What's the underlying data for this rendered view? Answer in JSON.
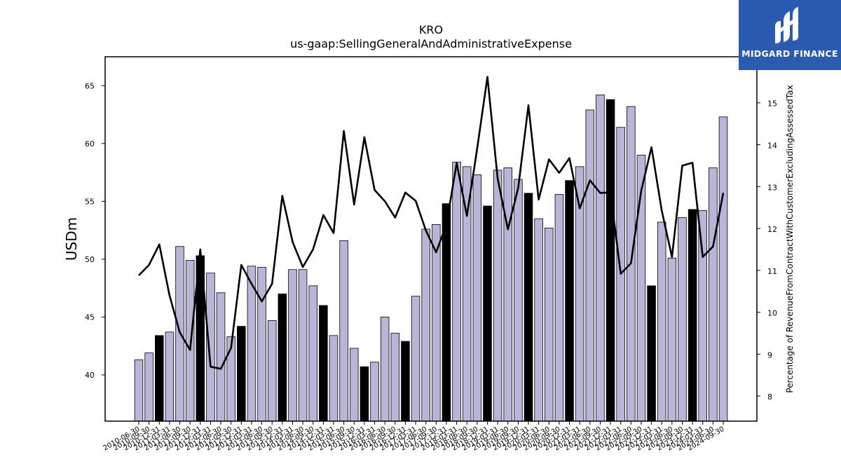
{
  "logo": {
    "text": "MIDGARD FINANCE"
  },
  "chart_data": {
    "type": "bar",
    "title": "KRO",
    "subtitle": "us-gaap:SellingGeneralAndAdministrativeExpense",
    "ylabel": "USDm",
    "y2label": "Percentage of RevenueFromContractWithCustomerExcludingAssessedTax",
    "ylim": [
      36,
      67.5
    ],
    "y2lim": [
      7.4,
      16.1
    ],
    "yticks": [
      40,
      45,
      50,
      55,
      60,
      65
    ],
    "y2ticks": [
      8,
      9,
      10,
      11,
      12,
      13,
      14,
      15
    ],
    "grid": false,
    "colors": {
      "bar": "#b8b5d8",
      "bar_annual": "#000000",
      "line": "#000000",
      "logo_bg": "#2b5bb0"
    },
    "categories": [
      "2010-06-30",
      "2010-09-30",
      "2010-12-31",
      "2011-03-31",
      "2011-06-30",
      "2011-09-30",
      "2011-12-31",
      "2012-03-31",
      "2012-06-30",
      "2012-09-30",
      "2012-12-31",
      "2013-03-31",
      "2013-06-30",
      "2013-09-30",
      "2013-12-31",
      "2014-03-31",
      "2014-06-30",
      "2014-09-30",
      "2014-12-31",
      "2015-03-31",
      "2015-06-30",
      "2015-09-30",
      "2015-12-31",
      "2016-03-31",
      "2016-06-30",
      "2016-09-30",
      "2016-12-31",
      "2017-03-31",
      "2017-06-30",
      "2017-09-30",
      "2017-12-31",
      "2018-03-31",
      "2018-06-30",
      "2018-09-30",
      "2018-12-31",
      "2019-03-31",
      "2019-06-30",
      "2019-09-30",
      "2019-12-31",
      "2020-03-31",
      "2020-06-30",
      "2020-09-30",
      "2020-12-31",
      "2021-03-31",
      "2021-06-30",
      "2021-09-30",
      "2021-12-31",
      "2022-03-31",
      "2022-06-30",
      "2022-09-30",
      "2022-12-31",
      "2023-03-31",
      "2023-06-30",
      "2023-09-30",
      "2023-12-31",
      "2024-03-31",
      "2024-06-30",
      "2024-09-30"
    ],
    "series": [
      {
        "kind": "bar",
        "values": [
          41.3,
          41.9,
          43.4,
          43.7,
          51.1,
          49.9,
          50.3,
          48.8,
          47.1,
          43.3,
          44.2,
          49.4,
          49.3,
          44.7,
          47.0,
          49.1,
          49.1,
          47.7,
          46.0,
          43.4,
          51.6,
          42.3,
          40.7,
          41.1,
          45.0,
          43.6,
          42.9,
          46.8,
          52.6,
          53.0,
          54.8,
          58.4,
          58.0,
          57.3,
          54.6,
          57.7,
          57.9,
          56.9,
          55.7,
          53.5,
          52.7,
          55.6,
          56.8,
          58.0,
          62.9,
          64.2,
          63.8,
          61.4,
          63.2,
          59.0,
          47.7,
          53.2,
          50.1,
          53.6,
          54.3,
          54.2,
          57.9,
          62.3
        ],
        "highlight": [
          false,
          false,
          true,
          false,
          false,
          false,
          true,
          false,
          false,
          false,
          true,
          false,
          false,
          false,
          true,
          false,
          false,
          false,
          true,
          false,
          false,
          false,
          true,
          false,
          false,
          false,
          true,
          false,
          false,
          false,
          true,
          false,
          false,
          false,
          true,
          false,
          false,
          false,
          true,
          false,
          false,
          false,
          true,
          false,
          false,
          false,
          true,
          false,
          false,
          false,
          true,
          false,
          false,
          false,
          true,
          false,
          false,
          false
        ]
      },
      {
        "kind": "line",
        "axis": "right",
        "values": [
          10.88,
          11.13,
          11.62,
          10.4,
          9.52,
          9.1,
          11.5,
          8.7,
          8.65,
          9.15,
          11.13,
          10.68,
          10.26,
          10.68,
          12.78,
          11.68,
          11.08,
          11.5,
          12.32,
          11.89,
          14.33,
          12.57,
          14.18,
          12.92,
          12.65,
          12.26,
          12.86,
          12.66,
          11.95,
          11.43,
          12.09,
          13.56,
          12.3,
          13.9,
          15.62,
          13.19,
          11.98,
          12.97,
          14.94,
          12.69,
          13.65,
          13.33,
          13.68,
          12.48,
          13.15,
          12.85,
          12.86,
          10.92,
          11.17,
          12.9,
          13.94,
          12.43,
          11.32,
          13.5,
          13.57,
          11.32,
          11.57,
          12.85
        ]
      }
    ]
  }
}
